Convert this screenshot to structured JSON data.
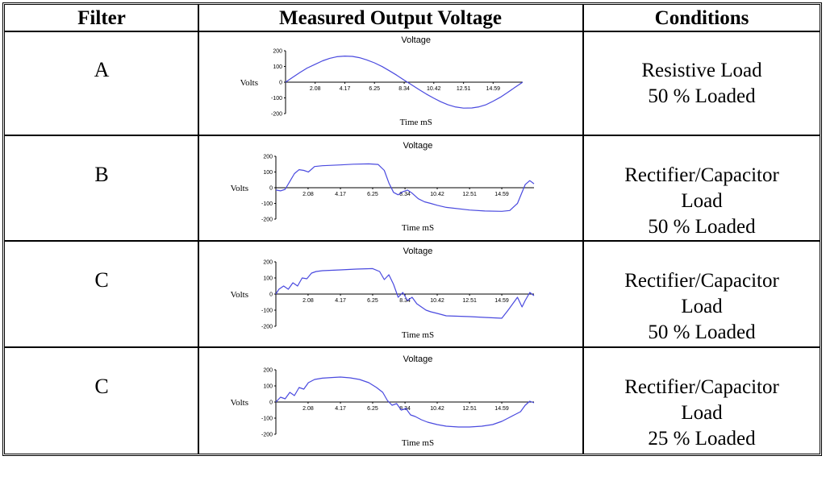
{
  "headers": {
    "filter": "Filter",
    "output": "Measured Output Voltage",
    "conditions": "Conditions"
  },
  "rows": [
    {
      "filter": "A",
      "conditions": [
        "Resistive Load",
        "50 % Loaded"
      ]
    },
    {
      "filter": "B",
      "conditions": [
        "Rectifier/Capacitor",
        "Load",
        "50 % Loaded"
      ]
    },
    {
      "filter": "C",
      "conditions": [
        "Rectifier/Capacitor",
        "Load",
        "50 % Loaded"
      ]
    },
    {
      "filter": "C",
      "conditions": [
        "Rectifier/Capacitor",
        "Load",
        "25 % Loaded"
      ]
    }
  ],
  "colors": {
    "trace": "#4a4adf",
    "axis": "#000000"
  },
  "chart_data": [
    {
      "type": "line",
      "title": "Voltage",
      "xlabel": "Time mS",
      "ylabel": "Volts",
      "xlim": [
        0,
        16.67
      ],
      "ylim": [
        -200,
        200
      ],
      "x_ticks": [
        "2.08",
        "4.17",
        "6.25",
        "8.34",
        "10.42",
        "12.51",
        "14.59"
      ],
      "y_ticks": [
        "200",
        "100",
        "0",
        "-100",
        "-200"
      ],
      "grid": false,
      "series": [
        {
          "x": [
            0,
            0.5,
            1,
            1.5,
            2.08,
            2.6,
            3.1,
            3.6,
            4.17,
            4.7,
            5.2,
            5.7,
            6.25,
            6.8,
            7.3,
            7.8,
            8.34,
            8.9,
            9.4,
            9.9,
            10.42,
            10.9,
            11.4,
            11.9,
            12.51,
            13.1,
            13.6,
            14.1,
            14.59,
            15.1,
            15.6,
            16.1,
            16.67
          ],
          "y": [
            0,
            31,
            61,
            89,
            114,
            136,
            152,
            162,
            166,
            164,
            156,
            142,
            123,
            99,
            73,
            45,
            13,
            -19,
            -48,
            -76,
            -102,
            -124,
            -143,
            -157,
            -165,
            -164,
            -157,
            -143,
            -121,
            -96,
            -66,
            -35,
            0
          ]
        }
      ]
    },
    {
      "type": "line",
      "title": "Voltage",
      "xlabel": "Time mS",
      "ylabel": "Volts",
      "xlim": [
        0,
        16.67
      ],
      "ylim": [
        -200,
        200
      ],
      "x_ticks": [
        "2.08",
        "4.17",
        "6.25",
        "8.34",
        "10.42",
        "12.51",
        "14.59"
      ],
      "y_ticks": [
        "200",
        "100",
        "0",
        "-100",
        "-200"
      ],
      "grid": false,
      "series": [
        {
          "x": [
            0,
            0.3,
            0.6,
            0.9,
            1.2,
            1.5,
            1.8,
            2.1,
            2.5,
            3.0,
            4.17,
            5.0,
            6.0,
            6.6,
            7.0,
            7.3,
            7.6,
            7.9,
            8.2,
            8.5,
            8.8,
            9.2,
            9.6,
            10.0,
            10.42,
            11.0,
            12.51,
            13.5,
            14.59,
            15.1,
            15.6,
            16.1,
            16.4,
            16.67
          ],
          "y": [
            -15,
            -20,
            -10,
            40,
            90,
            115,
            110,
            100,
            135,
            140,
            145,
            150,
            152,
            148,
            110,
            30,
            -30,
            -45,
            -25,
            -15,
            -35,
            -70,
            -90,
            -100,
            -112,
            -125,
            -142,
            -148,
            -150,
            -145,
            -100,
            20,
            45,
            25
          ]
        }
      ]
    },
    {
      "type": "line",
      "title": "Voltage",
      "xlabel": "Time mS",
      "ylabel": "Volts",
      "xlim": [
        0,
        16.67
      ],
      "ylim": [
        -200,
        200
      ],
      "x_ticks": [
        "2.08",
        "4.17",
        "6.25",
        "8.34",
        "10.42",
        "12.51",
        "14.59"
      ],
      "y_ticks": [
        "200",
        "100",
        "0",
        "-100",
        "-200"
      ],
      "grid": false,
      "series": [
        {
          "x": [
            0,
            0.2,
            0.5,
            0.8,
            1.1,
            1.4,
            1.7,
            2.0,
            2.3,
            2.6,
            3.0,
            4.17,
            5.2,
            6.25,
            6.7,
            7.0,
            7.3,
            7.6,
            7.9,
            8.2,
            8.5,
            8.8,
            9.1,
            9.4,
            9.7,
            10.0,
            10.42,
            11.0,
            12.51,
            13.5,
            14.59,
            15.0,
            15.3,
            15.6,
            15.9,
            16.1,
            16.4,
            16.67
          ],
          "y": [
            0,
            30,
            50,
            30,
            70,
            50,
            100,
            95,
            130,
            140,
            145,
            150,
            155,
            158,
            140,
            90,
            120,
            60,
            -20,
            10,
            -40,
            -20,
            -60,
            -80,
            -100,
            -110,
            -120,
            -135,
            -140,
            -145,
            -150,
            -100,
            -60,
            -20,
            -80,
            -40,
            10,
            -10
          ]
        }
      ]
    },
    {
      "type": "line",
      "title": "Voltage",
      "xlabel": "Time mS",
      "ylabel": "Volts",
      "xlim": [
        0,
        16.67
      ],
      "ylim": [
        -200,
        200
      ],
      "x_ticks": [
        "2.08",
        "4.17",
        "6.25",
        "8.34",
        "10.42",
        "12.51",
        "14.59"
      ],
      "y_ticks": [
        "200",
        "100",
        "0",
        "-100",
        "-200"
      ],
      "grid": false,
      "series": [
        {
          "x": [
            0,
            0.3,
            0.6,
            0.9,
            1.2,
            1.5,
            1.8,
            2.1,
            2.5,
            3.0,
            3.6,
            4.17,
            4.8,
            5.4,
            6.0,
            6.5,
            6.9,
            7.2,
            7.5,
            7.8,
            8.1,
            8.4,
            8.7,
            9.0,
            9.4,
            9.8,
            10.42,
            11.0,
            11.8,
            12.51,
            13.3,
            14.0,
            14.59,
            15.0,
            15.4,
            15.8,
            16.1,
            16.4,
            16.67
          ],
          "y": [
            0,
            30,
            20,
            60,
            40,
            90,
            80,
            120,
            140,
            148,
            152,
            155,
            150,
            140,
            120,
            90,
            60,
            10,
            -20,
            -10,
            -50,
            -40,
            -80,
            -90,
            -110,
            -125,
            -140,
            -150,
            -155,
            -155,
            -150,
            -140,
            -120,
            -100,
            -80,
            -60,
            -20,
            5,
            -5
          ]
        }
      ]
    }
  ]
}
